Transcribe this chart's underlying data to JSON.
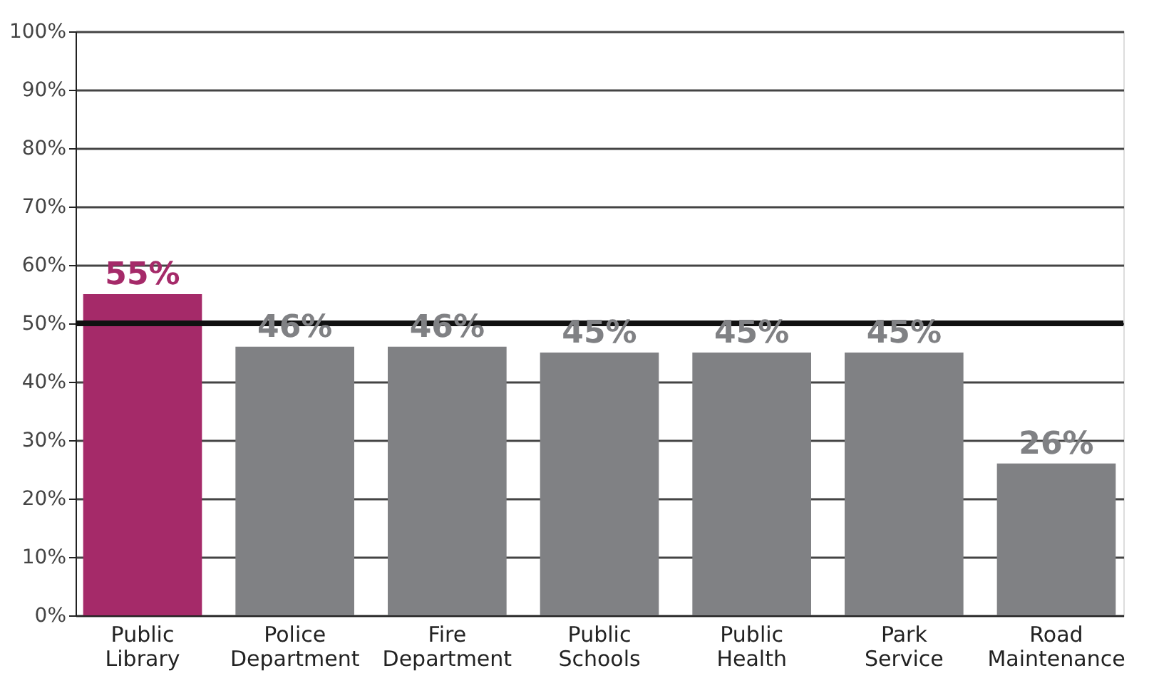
{
  "chart_data": {
    "type": "bar",
    "categories": [
      "Public Library",
      "Police Department",
      "Fire Department",
      "Public Schools",
      "Public Health",
      "Park Service",
      "Road Maintenance"
    ],
    "values": [
      55,
      46,
      46,
      45,
      45,
      45,
      26
    ],
    "colors": [
      "#a52a69",
      "#808184",
      "#808184",
      "#808184",
      "#808184",
      "#808184",
      "#808184"
    ],
    "ylim": [
      0,
      100
    ],
    "yticks": [
      {
        "value": 0,
        "label": "0%"
      },
      {
        "value": 10,
        "label": "10%"
      },
      {
        "value": 20,
        "label": "20%"
      },
      {
        "value": 30,
        "label": "30%"
      },
      {
        "value": 40,
        "label": "40%"
      },
      {
        "value": 50,
        "label": "50%"
      },
      {
        "value": 60,
        "label": "60%"
      },
      {
        "value": 70,
        "label": "70%"
      },
      {
        "value": 80,
        "label": "80%"
      },
      {
        "value": 90,
        "label": "90%"
      },
      {
        "value": 100,
        "label": "100%"
      }
    ],
    "value_labels": [
      "55%",
      "46%",
      "46%",
      "45%",
      "45%",
      "45%",
      "26%"
    ],
    "ref_lines": [
      {
        "axis": "y",
        "value": 50,
        "color": "#111111"
      }
    ],
    "grid": "y"
  }
}
